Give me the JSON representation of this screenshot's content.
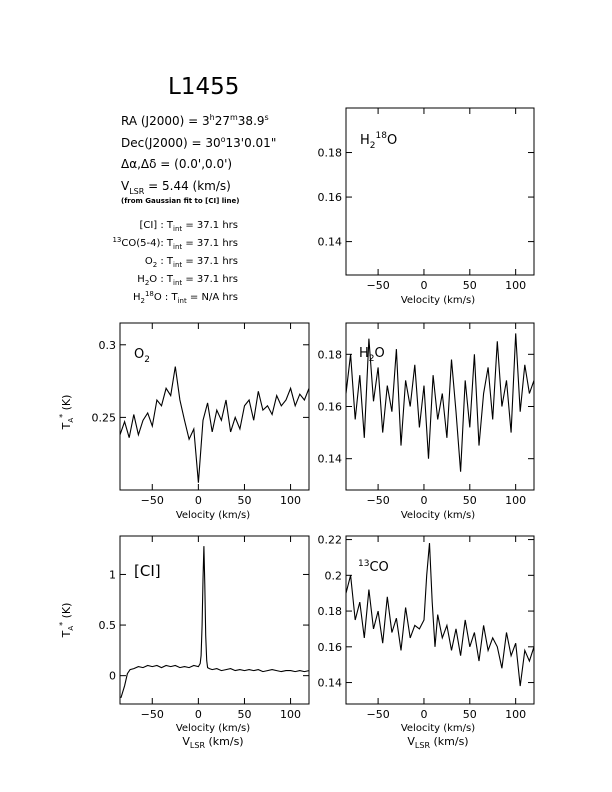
{
  "title": "L1455",
  "info": {
    "ra": {
      "pre": "RA (J2000) =  3",
      "h": "h",
      "mid": "27",
      "m": "m",
      "post": "38.9",
      "s": "s"
    },
    "dec": {
      "pre": "Dec(J2000) =  30",
      "deg": "o",
      "post": "13'0.01\""
    },
    "offset": "Δα,Δδ = (0.0',0.0')",
    "vlsr": {
      "v": "V",
      "sub": "LSR",
      "post": " = 5.44 (km/s)"
    },
    "note": "(from Gaussian fit to [CI] line)",
    "tint": [
      {
        "sup": "",
        "label": "[CI] : T",
        "sub": "int",
        "val": " = 37.1 hrs"
      },
      {
        "sup": "13",
        "label": "CO(5-4): T",
        "sub": "int",
        "val": " = 37.1 hrs"
      },
      {
        "sup": "",
        "label": "O",
        "sub2": "2",
        "label2": " : T",
        "sub": "int",
        "val": " = 37.1 hrs"
      },
      {
        "sup": "",
        "label": "H",
        "sub2": "2",
        "label2": "O : T",
        "sub": "int",
        "val": " = 37.1 hrs"
      },
      {
        "sup": "",
        "label": "H",
        "sub2": "2",
        "sup2": "18",
        "label2": "O : T",
        "sub": "int",
        "val": " = N/A hrs"
      }
    ]
  },
  "axis_text": {
    "x_label": "Velocity (km/s)",
    "vlsr_label": {
      "v": "V",
      "sub": "LSR",
      "post": " (km/s)"
    },
    "y_label": {
      "t": "T",
      "sub": "A",
      "sup": "*",
      "post": " (K)"
    }
  },
  "chart_data": [
    {
      "id": "h218o",
      "type": "line",
      "label": {
        "a": "H",
        "sub": "2",
        "sup": "18",
        "b": "O"
      },
      "xlim": [
        -85,
        120
      ],
      "ylim": [
        0.125,
        0.2
      ],
      "xticks": [
        -50,
        0,
        50,
        100
      ],
      "yticks": [
        0.14,
        0.16,
        0.18
      ],
      "ytick_labels": [
        "0.14",
        "0.16",
        "0.18"
      ],
      "x": [],
      "y": []
    },
    {
      "id": "o2",
      "type": "line",
      "label": {
        "a": "O",
        "sub": "2",
        "sup": "",
        "b": ""
      },
      "xlim": [
        -85,
        120
      ],
      "ylim": [
        0.2,
        0.315
      ],
      "xticks": [
        -50,
        0,
        50,
        100
      ],
      "yticks": [
        0.25,
        0.3
      ],
      "ytick_labels": [
        "0.25",
        "0.3"
      ],
      "x": [
        -85,
        -80,
        -75,
        -70,
        -65,
        -60,
        -55,
        -50,
        -45,
        -40,
        -35,
        -30,
        -25,
        -20,
        -15,
        -10,
        -5,
        0,
        5,
        10,
        15,
        20,
        25,
        30,
        35,
        40,
        45,
        50,
        55,
        60,
        65,
        70,
        75,
        80,
        85,
        90,
        95,
        100,
        105,
        110,
        115,
        120
      ],
      "y": [
        0.238,
        0.247,
        0.236,
        0.252,
        0.238,
        0.248,
        0.253,
        0.244,
        0.262,
        0.258,
        0.27,
        0.265,
        0.285,
        0.262,
        0.248,
        0.235,
        0.242,
        0.205,
        0.248,
        0.26,
        0.24,
        0.255,
        0.248,
        0.262,
        0.24,
        0.25,
        0.242,
        0.258,
        0.262,
        0.248,
        0.268,
        0.255,
        0.258,
        0.252,
        0.265,
        0.258,
        0.262,
        0.27,
        0.258,
        0.266,
        0.262,
        0.27
      ]
    },
    {
      "id": "h2o",
      "type": "line",
      "label": {
        "a": "H",
        "sub": "2",
        "sup": "",
        "b": "O"
      },
      "xlim": [
        -85,
        120
      ],
      "ylim": [
        0.128,
        0.192
      ],
      "xticks": [
        -50,
        0,
        50,
        100
      ],
      "yticks": [
        0.14,
        0.16,
        0.18
      ],
      "ytick_labels": [
        "0.14",
        "0.16",
        "0.18"
      ],
      "x": [
        -85,
        -80,
        -75,
        -70,
        -65,
        -60,
        -55,
        -50,
        -45,
        -40,
        -35,
        -30,
        -25,
        -20,
        -15,
        -10,
        -5,
        0,
        5,
        10,
        15,
        20,
        25,
        30,
        35,
        40,
        45,
        50,
        55,
        60,
        65,
        70,
        75,
        80,
        85,
        90,
        95,
        100,
        105,
        110,
        115,
        120
      ],
      "y": [
        0.165,
        0.18,
        0.155,
        0.172,
        0.148,
        0.186,
        0.162,
        0.175,
        0.15,
        0.168,
        0.158,
        0.182,
        0.145,
        0.17,
        0.16,
        0.176,
        0.152,
        0.168,
        0.14,
        0.172,
        0.155,
        0.165,
        0.148,
        0.178,
        0.158,
        0.135,
        0.17,
        0.152,
        0.18,
        0.145,
        0.165,
        0.175,
        0.155,
        0.185,
        0.16,
        0.17,
        0.15,
        0.188,
        0.158,
        0.176,
        0.165,
        0.17
      ]
    },
    {
      "id": "ci",
      "type": "line",
      "label": {
        "a": "[CI]",
        "sub": "",
        "sup": "",
        "b": ""
      },
      "xlim": [
        -85,
        120
      ],
      "ylim": [
        -0.28,
        1.38
      ],
      "xticks": [
        -50,
        0,
        50,
        100
      ],
      "yticks": [
        0,
        0.5,
        1
      ],
      "ytick_labels": [
        "0",
        "0.5",
        "1"
      ],
      "x": [
        -84,
        -80,
        -77,
        -74,
        -70,
        -65,
        -60,
        -55,
        -50,
        -45,
        -40,
        -35,
        -30,
        -25,
        -20,
        -15,
        -10,
        -5,
        0,
        2,
        3,
        4,
        5,
        6,
        7,
        8,
        9,
        10,
        12,
        15,
        20,
        25,
        30,
        35,
        40,
        45,
        50,
        55,
        60,
        65,
        70,
        75,
        80,
        85,
        90,
        95,
        100,
        105,
        110,
        115,
        120
      ],
      "y": [
        -0.22,
        -0.1,
        0.02,
        0.06,
        0.07,
        0.09,
        0.08,
        0.1,
        0.09,
        0.1,
        0.08,
        0.1,
        0.09,
        0.1,
        0.08,
        0.09,
        0.08,
        0.1,
        0.09,
        0.12,
        0.2,
        0.5,
        0.95,
        1.28,
        0.9,
        0.4,
        0.15,
        0.08,
        0.07,
        0.06,
        0.07,
        0.05,
        0.06,
        0.07,
        0.05,
        0.06,
        0.05,
        0.06,
        0.05,
        0.06,
        0.04,
        0.05,
        0.06,
        0.05,
        0.04,
        0.05,
        0.05,
        0.04,
        0.05,
        0.04,
        0.05
      ]
    },
    {
      "id": "13co",
      "type": "line",
      "label": {
        "a": "",
        "sub": "",
        "sup": "13",
        "b": "CO"
      },
      "xlim": [
        -85,
        120
      ],
      "ylim": [
        0.128,
        0.222
      ],
      "xticks": [
        -50,
        0,
        50,
        100
      ],
      "yticks": [
        0.14,
        0.16,
        0.18,
        0.2,
        0.22
      ],
      "ytick_labels": [
        "0.14",
        "0.16",
        "0.18",
        "0.2",
        "0.22"
      ],
      "x": [
        -85,
        -80,
        -75,
        -70,
        -65,
        -60,
        -55,
        -50,
        -45,
        -40,
        -35,
        -30,
        -25,
        -20,
        -15,
        -10,
        -5,
        0,
        3,
        6,
        9,
        12,
        15,
        20,
        25,
        30,
        35,
        40,
        45,
        50,
        55,
        60,
        65,
        70,
        75,
        80,
        85,
        90,
        95,
        100,
        105,
        110,
        115,
        120
      ],
      "y": [
        0.19,
        0.2,
        0.175,
        0.185,
        0.165,
        0.192,
        0.17,
        0.18,
        0.162,
        0.188,
        0.168,
        0.176,
        0.158,
        0.182,
        0.165,
        0.172,
        0.17,
        0.175,
        0.2,
        0.218,
        0.185,
        0.16,
        0.178,
        0.165,
        0.172,
        0.158,
        0.17,
        0.155,
        0.175,
        0.16,
        0.168,
        0.152,
        0.172,
        0.158,
        0.165,
        0.16,
        0.148,
        0.168,
        0.155,
        0.162,
        0.138,
        0.158,
        0.152,
        0.16
      ]
    }
  ]
}
